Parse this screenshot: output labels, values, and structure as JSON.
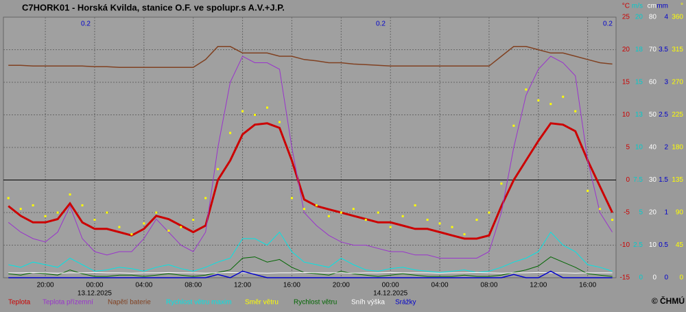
{
  "chart_data": {
    "type": "line",
    "title": "C7HORK01 - Horská Kvilda, stanice O.F. ve spolupr.s A.V.+J.P.",
    "copyright": "© ČHMÚ",
    "annotations": [
      "0.2",
      "0.2",
      "0.2"
    ],
    "grid": true,
    "zero_line": true,
    "x": [
      -7,
      -6,
      -5,
      -4,
      -3,
      -2,
      -1,
      0,
      1,
      2,
      3,
      4,
      5,
      6,
      7,
      8,
      9,
      10,
      11,
      12,
      13,
      14,
      15,
      16,
      17,
      18,
      19,
      20,
      21,
      22,
      23,
      24,
      25,
      26,
      27,
      28,
      29,
      30,
      31,
      32,
      33,
      34,
      35,
      36,
      37,
      38,
      39,
      40,
      41,
      42
    ],
    "xlim": [
      -7.4,
      42.3
    ],
    "xticks": [
      {
        "value": -4,
        "label": "20:00"
      },
      {
        "value": 0,
        "label": "00:00"
      },
      {
        "value": 4,
        "label": "04:00"
      },
      {
        "value": 8,
        "label": "08:00"
      },
      {
        "value": 12,
        "label": "12:00"
      },
      {
        "value": 16,
        "label": "16:00"
      },
      {
        "value": 20,
        "label": "20:00"
      },
      {
        "value": 24,
        "label": "00:00"
      },
      {
        "value": 28,
        "label": "04:00"
      },
      {
        "value": 32,
        "label": "08:00"
      },
      {
        "value": 36,
        "label": "12:00"
      },
      {
        "value": 40,
        "label": "16:00"
      }
    ],
    "dates": [
      {
        "value": 0,
        "label": "13.12.2025"
      },
      {
        "value": 24,
        "label": "14.12.2025"
      }
    ],
    "y_label": "°C",
    "y_color": "#cc0000",
    "ylim": [
      -15,
      25
    ],
    "yticks": [
      -15,
      -10,
      -5,
      0,
      5,
      10,
      15,
      20,
      25
    ],
    "y2_label": "m/s",
    "y2_color": "#00cccc",
    "y2lim": [
      0,
      20
    ],
    "y2ticks": [
      0,
      2.5,
      5,
      7.5,
      10,
      {
        "value": 12.5,
        "label": "13"
      },
      15,
      {
        "value": 17.5,
        "label": "18"
      },
      20
    ],
    "y3_label": "cm",
    "y3_color": "#ffffff",
    "y3lim": [
      0,
      80
    ],
    "y3ticks": [
      0,
      10,
      20,
      30,
      40,
      50,
      60,
      70,
      80
    ],
    "y4_label": "mm",
    "y4_color": "#0000cc",
    "y4lim": [
      0,
      4
    ],
    "y4ticks": [
      0,
      0.5,
      1,
      1.5,
      2,
      2.5,
      3,
      3.5,
      4
    ],
    "y5_label": "°",
    "y5_color": "#ffff00",
    "y5lim": [
      0,
      360
    ],
    "y5ticks": [
      0,
      45,
      90,
      135,
      180,
      225,
      270,
      315,
      360
    ],
    "series": [
      {
        "name": "Teplota",
        "color": "#cc0000",
        "axis": "y",
        "width": 3,
        "values": [
          -4,
          -5.5,
          -6.5,
          -6.5,
          -6,
          -3.6,
          -6.5,
          -7.5,
          -7.5,
          -8,
          -8.5,
          -7.5,
          -5.5,
          -6,
          -7,
          -8,
          -7,
          0,
          3,
          7,
          8.5,
          8.7,
          8,
          3,
          -3,
          -4,
          -4.5,
          -5,
          -5.5,
          -6,
          -6.5,
          -6.5,
          -7,
          -7.5,
          -7.5,
          -8,
          -8.5,
          -9,
          -9,
          -8.5,
          -4,
          0,
          3,
          6,
          8.7,
          8.5,
          7.5,
          3,
          -1,
          -5
        ]
      },
      {
        "name": "Teplota přízemní",
        "color": "#9933cc",
        "axis": "y",
        "width": 1,
        "values": [
          -6.5,
          -8,
          -9,
          -9.5,
          -8,
          -4,
          -9,
          -11,
          -11.5,
          -11,
          -11,
          -9,
          -6,
          -8,
          -10,
          -11,
          -8,
          5,
          15,
          19,
          18,
          18,
          17,
          5,
          -5,
          -7,
          -8.5,
          -9.5,
          -10,
          -10,
          -10.5,
          -11,
          -11,
          -11.5,
          -11.5,
          -12,
          -12,
          -12,
          -12,
          -11,
          -5,
          5,
          13,
          17,
          19,
          18,
          16,
          3,
          -5,
          -8
        ]
      },
      {
        "name": "Napětí baterie",
        "color": "#804020",
        "axis": "y",
        "width": 1.5,
        "values": [
          17.6,
          17.6,
          17.5,
          17.5,
          17.5,
          17.5,
          17.5,
          17.4,
          17.4,
          17.3,
          17.3,
          17.3,
          17.3,
          17.3,
          17.3,
          17.3,
          18.5,
          20.5,
          20.5,
          19.5,
          19.5,
          19.5,
          19,
          19,
          18.5,
          18.3,
          18,
          18,
          17.8,
          17.7,
          17.6,
          17.5,
          17.5,
          17.5,
          17.5,
          17.5,
          17.5,
          17.5,
          17.5,
          17.5,
          19,
          20.5,
          20.5,
          20,
          19.5,
          19.5,
          19,
          18.5,
          18,
          17.8
        ]
      },
      {
        "name": "Rychlost větru maxim",
        "color": "#00e5e5",
        "axis": "y2",
        "width": 1,
        "values": [
          1,
          0.8,
          1.2,
          1,
          0.8,
          1.5,
          1,
          0.5,
          0.6,
          0.8,
          0.7,
          0.5,
          0.8,
          1,
          0.7,
          0.5,
          0.8,
          1.2,
          1.5,
          3,
          3,
          2.5,
          3.5,
          2,
          1.2,
          1,
          0.8,
          1.5,
          1,
          0.6,
          0.5,
          0.7,
          0.8,
          0.6,
          0.5,
          0.4,
          0.5,
          0.6,
          0.4,
          0.5,
          0.8,
          1.2,
          1.5,
          2,
          3.5,
          2.5,
          2,
          1,
          0.8,
          0.5
        ]
      },
      {
        "name": "Směr větru",
        "color": "#ffff00",
        "axis": "y5",
        "marker": "dot",
        "values": [
          110,
          95,
          100,
          85,
          90,
          115,
          100,
          80,
          90,
          70,
          60,
          75,
          90,
          65,
          70,
          80,
          110,
          150,
          200,
          230,
          225,
          235,
          215,
          110,
          95,
          100,
          85,
          90,
          95,
          80,
          90,
          70,
          85,
          100,
          80,
          75,
          70,
          60,
          80,
          90,
          130,
          210,
          260,
          245,
          240,
          250,
          230,
          120,
          95,
          80
        ]
      },
      {
        "name": "Rychlost větru",
        "color": "#006600",
        "axis": "y2",
        "width": 1,
        "values": [
          0.3,
          0.2,
          0.4,
          0.3,
          0.2,
          0.6,
          0.3,
          0.1,
          0.1,
          0.2,
          0.2,
          0.1,
          0.2,
          0.3,
          0.2,
          0.1,
          0.2,
          0.4,
          0.6,
          1.5,
          1.6,
          1.2,
          1.4,
          0.8,
          0.4,
          0.3,
          0.2,
          0.5,
          0.3,
          0.2,
          0.1,
          0.2,
          0.3,
          0.2,
          0.1,
          0.1,
          0.1,
          0.2,
          0.1,
          0.1,
          0.2,
          0.4,
          0.6,
          0.9,
          1.6,
          1.2,
          0.8,
          0.3,
          0.2,
          0.1
        ]
      },
      {
        "name": "Sníh výška",
        "color": "#ffffff",
        "axis": "y3",
        "width": 1,
        "values": [
          1.5,
          1.5,
          1.6,
          1.5,
          1.4,
          1.5,
          1.5,
          1.6,
          1.5,
          1.5,
          1.4,
          1.5,
          1.5,
          1.6,
          1.5,
          1.5,
          1.4,
          1.5,
          1.6,
          1.5,
          1.5,
          1.4,
          1.5,
          1.5,
          1.6,
          1.5,
          1.5,
          1.5,
          1.4,
          1.5,
          1.5,
          1.6,
          1.5,
          1.5,
          1.5,
          1.4,
          1.5,
          1.5,
          1.6,
          1.5,
          1.4,
          1.5,
          1.5,
          1.6,
          1.5,
          1.5,
          1.4,
          1.5,
          1.5,
          1.5
        ]
      },
      {
        "name": "Srážky",
        "color": "#0000cc",
        "axis": "y4",
        "width": 1.5,
        "values": [
          0,
          0,
          0,
          0,
          0,
          0,
          0,
          0,
          0,
          0,
          0,
          0,
          0,
          0,
          0,
          0,
          0,
          0.05,
          0,
          0.1,
          0.05,
          0,
          0,
          0,
          0,
          0,
          0,
          0,
          0,
          0,
          0,
          0,
          0,
          0,
          0,
          0,
          0,
          0,
          0,
          0,
          0,
          0.05,
          0,
          0,
          0.1,
          0,
          0,
          0,
          0,
          0
        ]
      }
    ]
  }
}
